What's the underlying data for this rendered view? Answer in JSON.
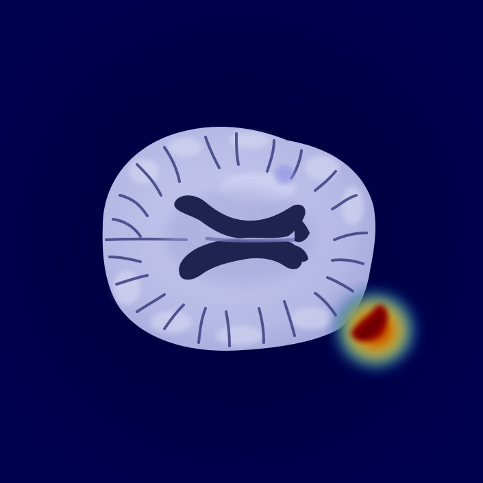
{
  "image": {
    "subject": "axial-brain-mri-slice",
    "overlay": "attention-heatmap",
    "colors": {
      "background": "#000050",
      "tissue": "#b8bbe6",
      "tissue_light": "#d6d7f3",
      "sulci": "#3c3f80",
      "ventricle": "#20224f",
      "heat_hot": "#8a0000",
      "heat_mid": "#e03a00",
      "heat_warm": "#f2c400",
      "heat_cool": "#2fa84a",
      "heat_cold": "#1a3fbf"
    }
  }
}
